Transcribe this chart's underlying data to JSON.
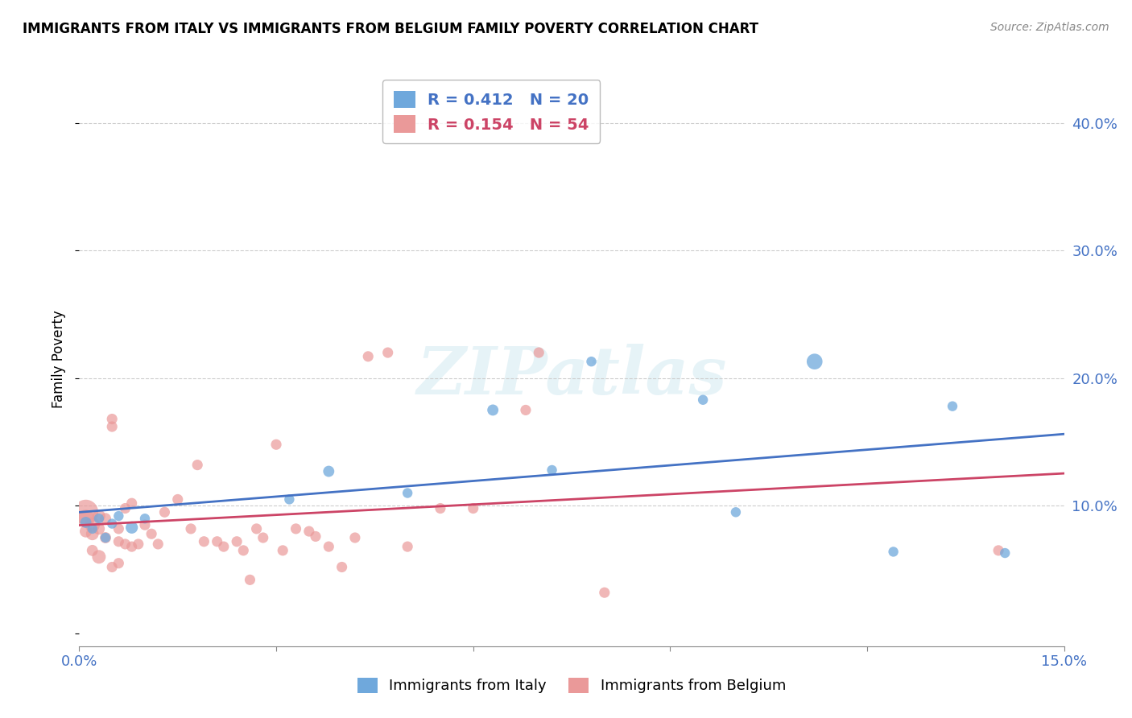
{
  "title": "IMMIGRANTS FROM ITALY VS IMMIGRANTS FROM BELGIUM FAMILY POVERTY CORRELATION CHART",
  "source": "Source: ZipAtlas.com",
  "ylabel": "Family Poverty",
  "watermark": "ZIPatlas",
  "xlim": [
    0.0,
    0.15
  ],
  "ylim": [
    -0.01,
    0.44
  ],
  "xticks": [
    0.0,
    0.03,
    0.06,
    0.09,
    0.12,
    0.15
  ],
  "yticks": [
    0.0,
    0.1,
    0.2,
    0.3,
    0.4
  ],
  "xtick_labels": [
    "0.0%",
    "",
    "",
    "",
    "",
    "15.0%"
  ],
  "ytick_right_labels": [
    "",
    "10.0%",
    "20.0%",
    "30.0%",
    "40.0%"
  ],
  "italy_color": "#6fa8dc",
  "belgium_color": "#ea9999",
  "line_italy_color": "#4472c4",
  "line_belgium_color": "#cc4466",
  "italy_R": 0.412,
  "italy_N": 20,
  "belgium_R": 0.154,
  "belgium_N": 54,
  "italy_x": [
    0.001,
    0.002,
    0.003,
    0.004,
    0.005,
    0.006,
    0.008,
    0.01,
    0.032,
    0.038,
    0.05,
    0.063,
    0.072,
    0.078,
    0.095,
    0.1,
    0.112,
    0.124,
    0.133,
    0.141
  ],
  "italy_y": [
    0.087,
    0.082,
    0.09,
    0.075,
    0.086,
    0.092,
    0.083,
    0.09,
    0.105,
    0.127,
    0.11,
    0.175,
    0.128,
    0.213,
    0.183,
    0.095,
    0.213,
    0.064,
    0.178,
    0.063
  ],
  "italy_size": [
    100,
    80,
    80,
    80,
    80,
    80,
    120,
    80,
    80,
    100,
    80,
    100,
    80,
    80,
    80,
    80,
    200,
    80,
    80,
    80
  ],
  "belgium_x": [
    0.001,
    0.001,
    0.001,
    0.002,
    0.002,
    0.002,
    0.003,
    0.003,
    0.003,
    0.004,
    0.004,
    0.005,
    0.005,
    0.005,
    0.006,
    0.006,
    0.006,
    0.007,
    0.007,
    0.008,
    0.008,
    0.009,
    0.01,
    0.011,
    0.012,
    0.013,
    0.015,
    0.017,
    0.018,
    0.019,
    0.021,
    0.022,
    0.024,
    0.025,
    0.026,
    0.027,
    0.028,
    0.03,
    0.031,
    0.033,
    0.035,
    0.036,
    0.038,
    0.04,
    0.042,
    0.044,
    0.047,
    0.05,
    0.055,
    0.06,
    0.068,
    0.07,
    0.08,
    0.14
  ],
  "belgium_y": [
    0.095,
    0.09,
    0.08,
    0.085,
    0.078,
    0.065,
    0.092,
    0.082,
    0.06,
    0.09,
    0.075,
    0.168,
    0.162,
    0.052,
    0.082,
    0.072,
    0.055,
    0.098,
    0.07,
    0.102,
    0.068,
    0.07,
    0.085,
    0.078,
    0.07,
    0.095,
    0.105,
    0.082,
    0.132,
    0.072,
    0.072,
    0.068,
    0.072,
    0.065,
    0.042,
    0.082,
    0.075,
    0.148,
    0.065,
    0.082,
    0.08,
    0.076,
    0.068,
    0.052,
    0.075,
    0.217,
    0.22,
    0.068,
    0.098,
    0.098,
    0.175,
    0.22,
    0.032,
    0.065
  ],
  "belgium_size": [
    500,
    250,
    120,
    180,
    130,
    100,
    130,
    110,
    150,
    100,
    100,
    90,
    90,
    90,
    90,
    90,
    90,
    90,
    90,
    90,
    90,
    90,
    90,
    90,
    90,
    90,
    90,
    90,
    90,
    90,
    90,
    90,
    90,
    90,
    90,
    90,
    90,
    90,
    90,
    90,
    90,
    90,
    90,
    90,
    90,
    90,
    90,
    90,
    90,
    90,
    90,
    90,
    90,
    90
  ]
}
